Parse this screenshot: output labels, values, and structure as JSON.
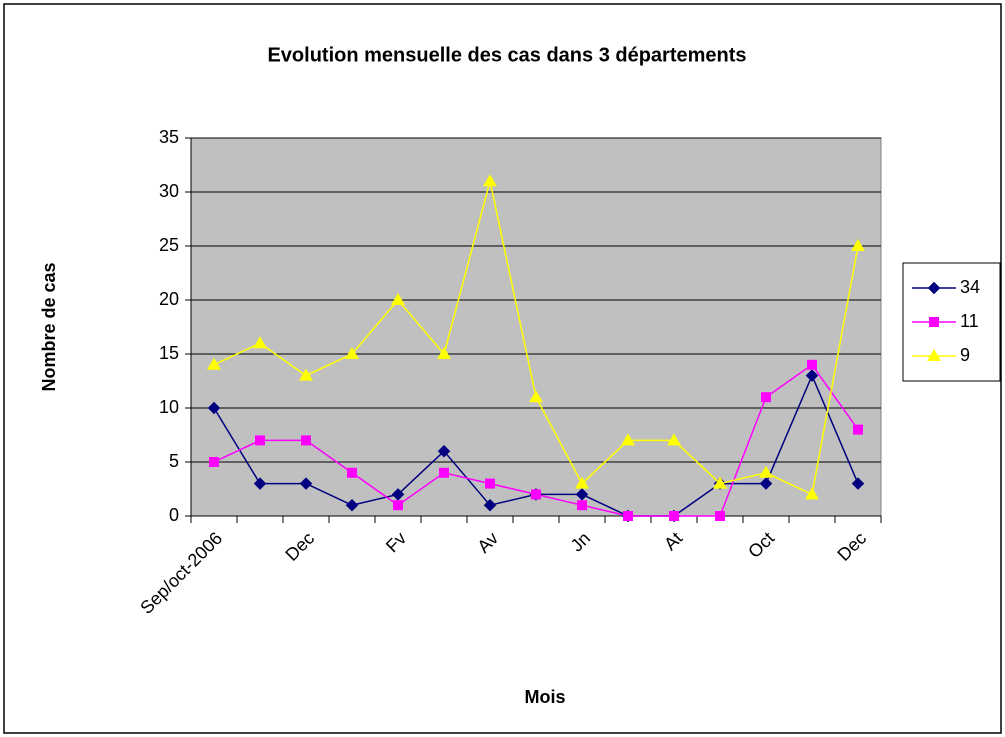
{
  "chart_data": {
    "type": "line",
    "title": "Evolution mensuelle des cas dans 3 départements",
    "x_label": "Mois",
    "y_label": "Nombre de cas",
    "categories": [
      "Sep/oct-2006",
      null,
      "Dec",
      null,
      "Fv",
      null,
      "Av",
      null,
      "Jn",
      null,
      "At",
      null,
      "Oct",
      null,
      "Dec"
    ],
    "series": [
      {
        "name": "34",
        "color": "#000080",
        "marker": "diamond",
        "values": [
          10,
          3,
          3,
          1,
          2,
          6,
          1,
          2,
          2,
          0,
          0,
          3,
          3,
          13,
          3
        ]
      },
      {
        "name": "11",
        "color": "#ff00ff",
        "marker": "square",
        "values": [
          5,
          7,
          7,
          4,
          1,
          4,
          3,
          2,
          1,
          0,
          0,
          0,
          11,
          14,
          8
        ]
      },
      {
        "name": "9",
        "color": "#ffff00",
        "marker": "triangle",
        "values": [
          14,
          16,
          13,
          15,
          20,
          15,
          31,
          11,
          3,
          7,
          7,
          3,
          4,
          2,
          25
        ]
      }
    ],
    "ylim": [
      0,
      35
    ],
    "yticks": [
      0,
      5,
      10,
      15,
      20,
      25,
      30,
      35
    ],
    "grid": true,
    "legend": "right"
  }
}
